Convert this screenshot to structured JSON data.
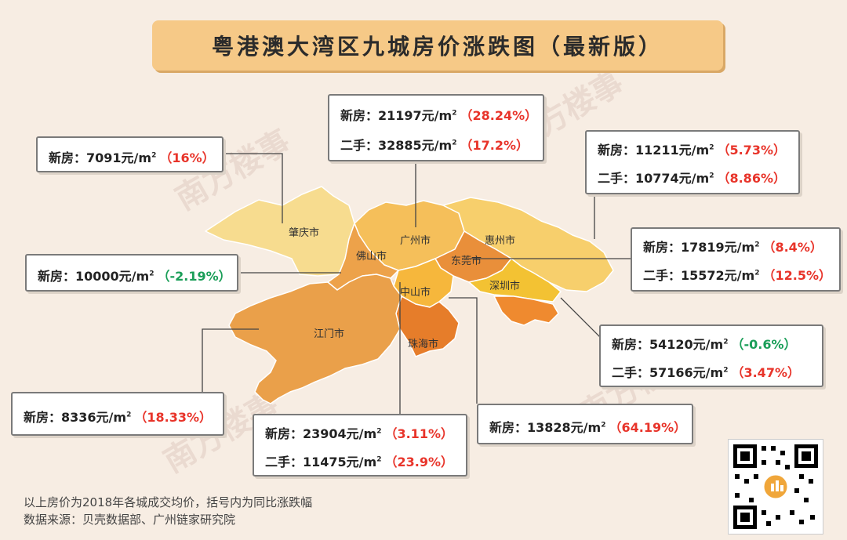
{
  "title": "粤港澳大湾区九城房价涨跌图（最新版）",
  "watermark": "南方楼事",
  "cities": {
    "zhaoqing": "肇庆市",
    "guangzhou": "广州市",
    "huizhou": "惠州市",
    "foshan": "佛山市",
    "dongguan": "东莞市",
    "zhongshan": "中山市",
    "shenzhen": "深圳市",
    "jiangmen": "江门市",
    "zhuhai": "珠海市"
  },
  "cards": {
    "zhaoqing": {
      "new_label": "新房：",
      "new_price": "7091元/m",
      "new_pct": "（16%）"
    },
    "guangzhou": {
      "new_label": "新房：",
      "new_price": "21197元/m",
      "new_pct": "（28.24%）",
      "used_label": "二手：",
      "used_price": "32885元/m",
      "used_pct": "（17.2%）"
    },
    "huizhou": {
      "new_label": "新房：",
      "new_price": "11211元/m",
      "new_pct": "（5.73%）",
      "used_label": "二手：",
      "used_price": "10774元/m",
      "used_pct": "（8.86%）"
    },
    "foshan": {
      "new_label": "新房：",
      "new_price": "10000元/m",
      "new_pct": "（-2.19%）"
    },
    "dongguan": {
      "new_label": "新房：",
      "new_price": "17819元/m",
      "new_pct": "（8.4%）",
      "used_label": "二手：",
      "used_price": "15572元/m",
      "used_pct": "（12.5%）"
    },
    "shenzhen": {
      "new_label": "新房：",
      "new_price": "54120元/m",
      "new_pct": "（-0.6%）",
      "used_label": "二手：",
      "used_price": "57166元/m",
      "used_pct": "（3.47%）"
    },
    "jiangmen": {
      "new_label": "新房：",
      "new_price": "8336元/m",
      "new_pct": "（18.33%）"
    },
    "zhongshan": {
      "new_label": "新房：",
      "new_price": "23904元/m",
      "new_pct": "（3.11%）",
      "used_label": "二手：",
      "used_price": "11475元/m",
      "used_pct": "（23.9%）"
    },
    "zhuhai": {
      "new_label": "新房：",
      "new_price": "13828元/m",
      "new_pct": "（64.19%）"
    }
  },
  "unit_sup": "2",
  "footer": {
    "line1": "以上房价为2018年各城成交均价，括号内为同比涨跌幅",
    "line2": "数据来源：贝壳数据部、广州链家研究院"
  },
  "colors": {
    "zhaoqing": "#f7dc8f",
    "guangzhou": "#f5bf5a",
    "huizhou": "#f7cf6c",
    "foshan": "#eda24a",
    "dongguan": "#e98f3a",
    "zhongshan": "#f6b73c",
    "shenzhen": "#f3c233",
    "jiangmen": "#eaa04a",
    "zhuhai": "#e67d2a",
    "hongkong": "#ef8a2f",
    "rise": "#e8342a",
    "fall": "#1a9e58"
  }
}
